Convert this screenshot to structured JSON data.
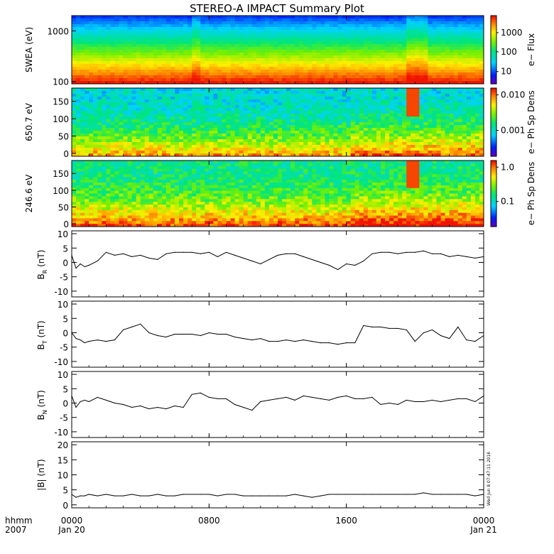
{
  "title": "STEREO-A IMPACT Summary Plot",
  "footer": {
    "hhmm_label": "hhmm",
    "year_label": "2007",
    "date_start": "Jan 20",
    "date_end": "Jan 21"
  },
  "timestamp_stamp": "Wed Jun 8 07:47:11 2016",
  "chart_data": [
    {
      "type": "heatmap",
      "panel": "swea-spectrogram",
      "ylabel": "SWEA (eV)",
      "yscale": "log",
      "ylim": [
        90,
        2000
      ],
      "yticks": [
        "1000",
        "100"
      ],
      "colorbar_label": "e− Flux",
      "colorbar_ticks": [
        "1000",
        "100",
        "10"
      ],
      "colorscale": "rainbow",
      "x_range": [
        "0000",
        "0000"
      ],
      "xticks": [
        "0000",
        "0800",
        "1600",
        "0000"
      ]
    },
    {
      "type": "heatmap",
      "panel": "pad-650",
      "ylabel": "650.7 eV",
      "ylim": [
        0,
        180
      ],
      "yticks": [
        "0",
        "50",
        "100",
        "150"
      ],
      "colorbar_label": "e− Ph Sp Dens",
      "colorbar_ticks": [
        "0.010",
        "0.001"
      ],
      "colorscale": "rainbow",
      "xticks": [
        "0000",
        "0800",
        "1600",
        "0000"
      ]
    },
    {
      "type": "heatmap",
      "panel": "pad-246",
      "ylabel": "246.6 eV",
      "ylim": [
        0,
        180
      ],
      "yticks": [
        "0",
        "50",
        "100",
        "150"
      ],
      "colorbar_label": "e− Ph Sp Dens",
      "colorbar_ticks": [
        "1.0",
        "0.1"
      ],
      "colorscale": "rainbow",
      "xticks": [
        "0000",
        "0800",
        "1600",
        "0000"
      ]
    },
    {
      "type": "line",
      "panel": "br",
      "ylabel_main": "B",
      "ylabel_sub": "R",
      "ylabel_unit": "(nT)",
      "ylim": [
        -12,
        11
      ],
      "yticks": [
        -10,
        -5,
        0,
        5,
        10
      ],
      "x": [
        0,
        0.25,
        0.5,
        0.75,
        1,
        1.5,
        2,
        2.5,
        3,
        3.5,
        4,
        4.5,
        5,
        5.5,
        6,
        6.5,
        7,
        7.5,
        8,
        8.5,
        9,
        9.5,
        10,
        10.5,
        11,
        11.5,
        12,
        12.5,
        13,
        13.5,
        14,
        14.5,
        15,
        15.5,
        16,
        16.5,
        17,
        17.5,
        18,
        18.5,
        19,
        19.5,
        20,
        20.5,
        21,
        21.5,
        22,
        22.5,
        23,
        23.5,
        24
      ],
      "values": [
        2.5,
        -2,
        -0.5,
        -1.5,
        -1,
        0.5,
        3.5,
        2.5,
        3,
        2,
        2.5,
        1.5,
        1,
        3,
        3.5,
        3.5,
        3.5,
        3,
        3.5,
        2,
        3.5,
        2.5,
        1.5,
        0.5,
        -0.5,
        1,
        2.5,
        3,
        3,
        2,
        1,
        0,
        -1,
        -2.5,
        -0.5,
        -1,
        0.5,
        3,
        3.5,
        3.5,
        3,
        3.5,
        3.5,
        4,
        3,
        3,
        2,
        2.5,
        2,
        1.5,
        2
      ]
    },
    {
      "type": "line",
      "panel": "bt",
      "ylabel_main": "B",
      "ylabel_sub": "T",
      "ylabel_unit": "(nT)",
      "ylim": [
        -12,
        11
      ],
      "yticks": [
        -10,
        -5,
        0,
        5,
        10
      ],
      "x": [
        0,
        0.25,
        0.5,
        0.75,
        1,
        1.5,
        2,
        2.5,
        3,
        3.5,
        4,
        4.5,
        5,
        5.5,
        6,
        6.5,
        7,
        7.5,
        8,
        8.5,
        9,
        9.5,
        10,
        10.5,
        11,
        11.5,
        12,
        12.5,
        13,
        13.5,
        14,
        14.5,
        15,
        15.5,
        16,
        16.5,
        17,
        17.5,
        18,
        18.5,
        19,
        19.5,
        20,
        20.5,
        21,
        21.5,
        22,
        22.5,
        23,
        23.5,
        24
      ],
      "values": [
        0,
        -2,
        -2.5,
        -3.5,
        -3,
        -2.5,
        -3,
        -2.5,
        1,
        2,
        3,
        0,
        -1,
        -1.5,
        -0.5,
        -0.5,
        -0.5,
        -1,
        0,
        -0.5,
        -0.5,
        -1.5,
        -2,
        -2.5,
        -2,
        -3,
        -3,
        -2.5,
        -3,
        -2.5,
        -3,
        -3.5,
        -3.5,
        -4,
        -3.5,
        -3.5,
        2.5,
        2,
        2,
        1.5,
        1.5,
        1,
        -3,
        0,
        1,
        -1,
        -2,
        2,
        -2.5,
        -3,
        -1
      ]
    },
    {
      "type": "line",
      "panel": "bn",
      "ylabel_main": "B",
      "ylabel_sub": "N",
      "ylabel_unit": "(nT)",
      "ylim": [
        -12,
        11
      ],
      "yticks": [
        -10,
        -5,
        0,
        5,
        10
      ],
      "x": [
        0,
        0.25,
        0.5,
        0.75,
        1,
        1.5,
        2,
        2.5,
        3,
        3.5,
        4,
        4.5,
        5,
        5.5,
        6,
        6.5,
        7,
        7.5,
        8,
        8.5,
        9,
        9.5,
        10,
        10.5,
        11,
        11.5,
        12,
        12.5,
        13,
        13.5,
        14,
        14.5,
        15,
        15.5,
        16,
        16.5,
        17,
        17.5,
        18,
        18.5,
        19,
        19.5,
        20,
        20.5,
        21,
        21.5,
        22,
        22.5,
        23,
        23.5,
        24
      ],
      "values": [
        2.5,
        -1.5,
        0.5,
        1,
        0.5,
        2,
        1,
        0,
        -0.5,
        -1.5,
        -1,
        -2,
        -1.5,
        -2,
        -1,
        -1.5,
        3,
        3.5,
        2,
        1.5,
        1.5,
        -0.5,
        -1.5,
        -2.5,
        0.5,
        1,
        1.5,
        2,
        1,
        2.5,
        2,
        1.5,
        1,
        2,
        2.5,
        1.5,
        1.5,
        2,
        -0.5,
        0,
        -0.5,
        1,
        0.5,
        0.5,
        1,
        0.5,
        1,
        1.5,
        1.5,
        0.5,
        2.5
      ]
    },
    {
      "type": "line",
      "panel": "bmag",
      "ylabel": "|B| (nT)",
      "ylim": [
        -1,
        21
      ],
      "yticks": [
        0,
        5,
        10,
        15,
        20
      ],
      "x": [
        0,
        0.25,
        0.5,
        0.75,
        1,
        1.5,
        2,
        2.5,
        3,
        3.5,
        4,
        4.5,
        5,
        5.5,
        6,
        6.5,
        7,
        7.5,
        8,
        8.5,
        9,
        9.5,
        10,
        10.5,
        11,
        11.5,
        12,
        12.5,
        13,
        13.5,
        14,
        14.5,
        15,
        15.5,
        16,
        16.5,
        17,
        17.5,
        18,
        18.5,
        19,
        19.5,
        20,
        20.5,
        21,
        21.5,
        22,
        22.5,
        23,
        23.5,
        24
      ],
      "values": [
        3.5,
        2.5,
        3,
        3,
        3.5,
        3,
        3.5,
        3,
        3,
        3.5,
        3,
        3,
        3.5,
        3,
        3,
        3.5,
        3.5,
        3.5,
        3.5,
        3,
        3.5,
        3.5,
        3,
        3,
        3,
        3,
        3,
        3,
        3.5,
        3,
        2.5,
        3,
        3.5,
        3.5,
        3.5,
        3.5,
        3.5,
        3.5,
        3.5,
        3.5,
        3.5,
        3.5,
        3.5,
        4,
        3.5,
        3.5,
        3.5,
        3.5,
        3.5,
        3,
        3.5
      ]
    }
  ]
}
